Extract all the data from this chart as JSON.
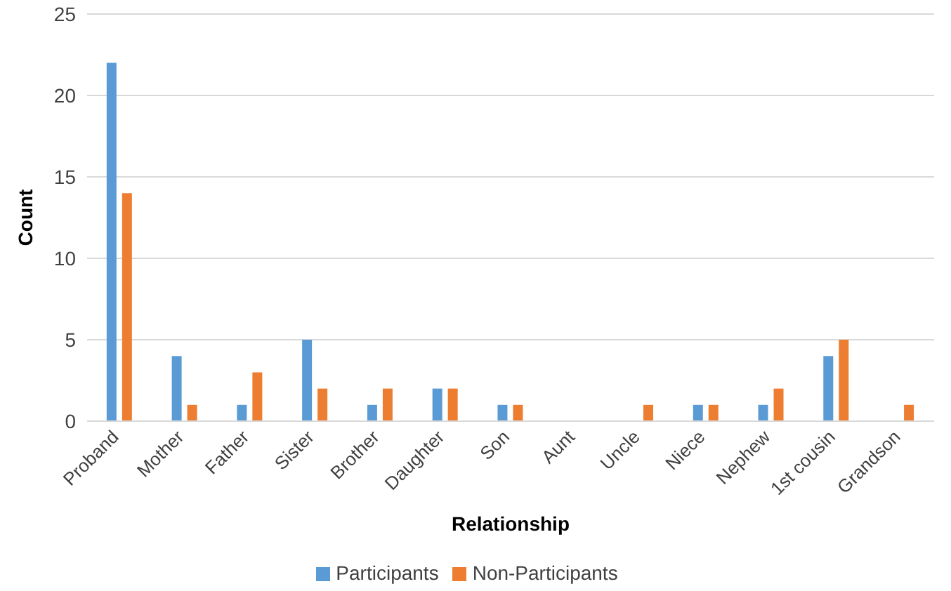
{
  "chart_data": {
    "type": "bar",
    "xlabel": "Relationship",
    "ylabel": "Count",
    "categories": [
      "Proband",
      "Mother",
      "Father",
      "Sister",
      "Brother",
      "Daughter",
      "Son",
      "Aunt",
      "Uncle",
      "Niece",
      "Nephew",
      "1st cousin",
      "Grandson"
    ],
    "series": [
      {
        "name": "Participants",
        "color": "#5b9bd5",
        "values": [
          22,
          4,
          1,
          5,
          1,
          2,
          1,
          0,
          0,
          1,
          1,
          4,
          0
        ]
      },
      {
        "name": "Non-Participants",
        "color": "#ed7d31",
        "values": [
          14,
          1,
          3,
          2,
          2,
          2,
          1,
          0,
          1,
          1,
          2,
          5,
          1
        ]
      }
    ],
    "ylim": [
      0,
      25
    ],
    "yticks": [
      0,
      5,
      10,
      15,
      20,
      25
    ],
    "grid": "y",
    "legend": "bottom"
  }
}
